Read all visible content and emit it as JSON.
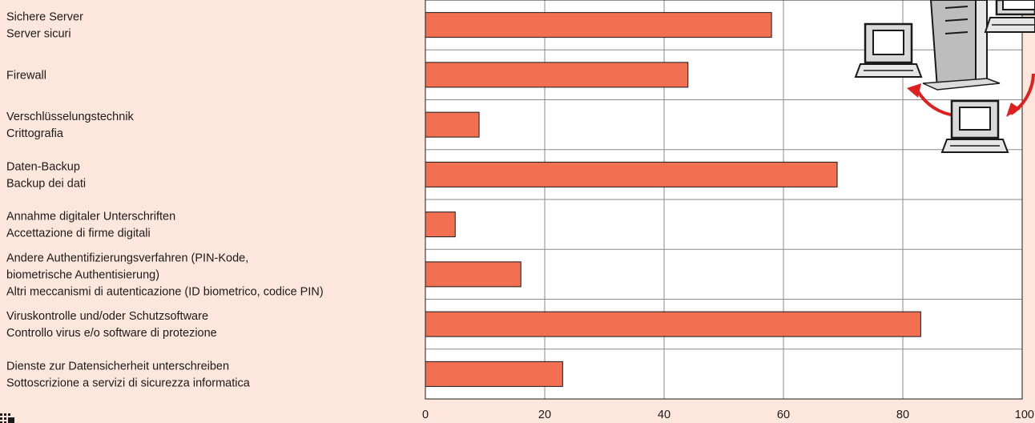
{
  "chart_data": {
    "type": "bar",
    "orientation": "horizontal",
    "categories": [
      [
        "Sichere Server",
        "Server sicuri"
      ],
      [
        "Firewall"
      ],
      [
        "Verschlüsselungstechnik",
        "Crittografia"
      ],
      [
        "Daten-Backup",
        "Backup dei dati"
      ],
      [
        "Annahme digitaler Unterschriften",
        "Accettazione di firme digitali"
      ],
      [
        "Andere Authentifizierungsverfahren (PIN-Kode,",
        "biometrische Authentisierung)",
        "Altri meccanismi di autenticazione (ID biometrico, codice PIN)"
      ],
      [
        "Viruskontrolle und/oder Schutzsoftware",
        "Controllo virus e/o software di protezione"
      ],
      [
        "Dienste zur Datensicherheit unterschreiben",
        "Sottoscrizione a servizi di sicurezza informatica"
      ]
    ],
    "values": [
      58,
      44,
      9,
      69,
      5,
      16,
      83,
      23
    ],
    "xlim": [
      0,
      100
    ],
    "xticks": [
      0,
      20,
      40,
      60,
      80,
      100
    ],
    "grid": true,
    "colors": {
      "bar": "#f26f52",
      "background": "#fde6dc",
      "plot_background": "#ffffff",
      "grid": "#8a8a8a",
      "arrows": "#e02020"
    },
    "title": "",
    "xlabel": "",
    "ylabel": ""
  },
  "decorations": {
    "illustration": "network-server-computers-icon",
    "logo": "logo-icon"
  }
}
